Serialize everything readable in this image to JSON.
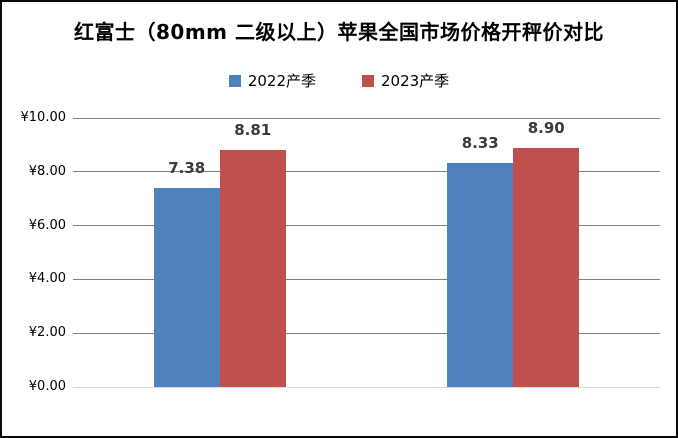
{
  "chart_data": {
    "type": "bar",
    "title": "红富士（80mm 二级以上）苹果全国市场价格开秤价对比",
    "categories": [
      "",
      ""
    ],
    "series": [
      {
        "name": "2022产季",
        "color": "#4F81BD",
        "values": [
          7.38,
          8.33
        ],
        "labels": [
          "7.38",
          "8.33"
        ]
      },
      {
        "name": "2023产季",
        "color": "#C0504D",
        "values": [
          8.81,
          8.9
        ],
        "labels": [
          "8.81",
          "8.90"
        ]
      }
    ],
    "xlabel": "",
    "ylabel": "",
    "ylim": [
      0,
      10
    ],
    "ytick_step": 2,
    "yticks": [
      {
        "label": "¥0.00",
        "value": 0
      },
      {
        "label": "¥2.00",
        "value": 2
      },
      {
        "label": "¥4.00",
        "value": 4
      },
      {
        "label": "¥6.00",
        "value": 6
      },
      {
        "label": "¥8.00",
        "value": 8
      },
      {
        "label": "¥10.00",
        "value": 10
      }
    ],
    "grid": true,
    "legend_position": "top",
    "colors": {
      "gridline": "#808080",
      "baseline": "#D9D9D9",
      "title_text": "#000000",
      "data_label_text": "#3A3A3A"
    }
  }
}
